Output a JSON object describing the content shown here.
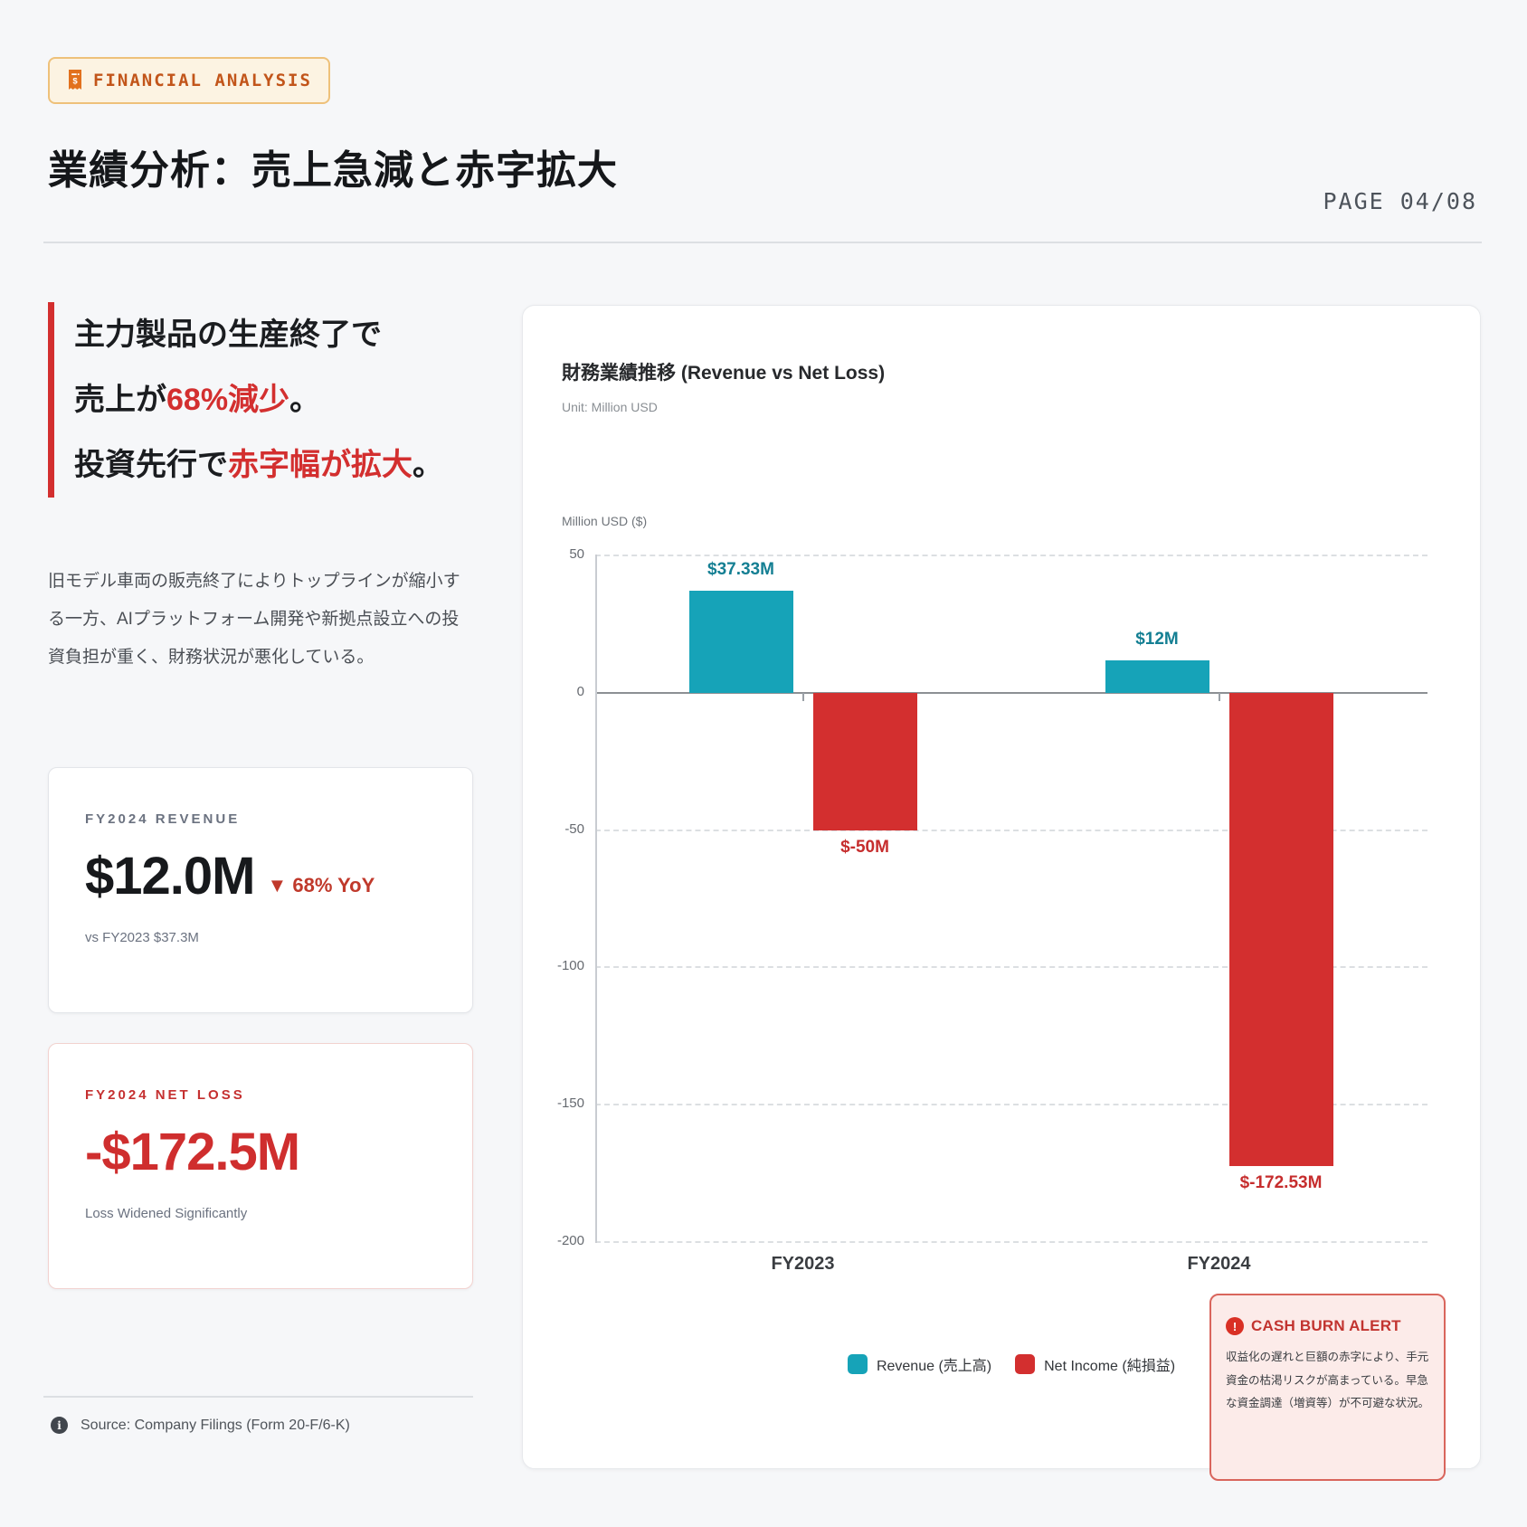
{
  "page": {
    "badge_label": "FINANCIAL ANALYSIS",
    "badge_icon": "receipt-icon",
    "title": "業績分析：売上急減と赤字拡大",
    "page_indicator": "PAGE 04/08",
    "colors": {
      "accent_red": "#d32f2f",
      "teal": "#16a3b8",
      "badge_orange": "#c2551a"
    }
  },
  "left": {
    "headline": {
      "line1": "主力製品の生産終了で",
      "line2_black": "売上が",
      "line2_red": "68%減少",
      "line2_tail": "。",
      "line3_black": "投資先行で",
      "line3_red": "赤字幅が拡大",
      "line3_tail": "。"
    },
    "paragraph": "旧モデル車両の販売終了によりトップラインが縮小する一方、AIプラットフォーム開発や新拠点設立への投資負担が重く、財務状況が悪化している。",
    "revenue_card": {
      "label": "FY2024 REVENUE",
      "value": "$12.0M",
      "delta": "▼ 68% YoY",
      "caption": "vs FY2023 $37.3M"
    },
    "netloss_card": {
      "label": "FY2024 NET LOSS",
      "value": "-$172.5M",
      "caption": "Loss Widened Significantly"
    },
    "source_icon": "info-icon",
    "source": "Source: Company Filings (Form 20-F/6-K)"
  },
  "chart_data": {
    "type": "bar",
    "title": "財務業績推移 (Revenue vs Net Loss)",
    "subtitle": "Unit: Million USD",
    "ylabel": "Million USD ($)",
    "categories": [
      "FY2023",
      "FY2024"
    ],
    "series": [
      {
        "name": "Revenue (売上高)",
        "color": "#16a3b8",
        "label_color": "#147f93",
        "values": [
          37.33,
          12
        ],
        "labels": [
          "$37.33M",
          "$12M"
        ]
      },
      {
        "name": "Net Income (純損益)",
        "color": "#d32f2f",
        "label_color": "#c62d2d",
        "values": [
          -50,
          -172.53
        ],
        "labels": [
          "$-50M",
          "$-172.53M"
        ]
      }
    ],
    "ylim": [
      -200,
      50
    ],
    "yticks": [
      50,
      0,
      -50,
      -100,
      -150,
      -200
    ],
    "grid": "dashed-horizontal",
    "legend_position": "bottom-center"
  },
  "alert": {
    "icon": "exclamation-icon",
    "title": "CASH BURN ALERT",
    "body": "収益化の遅れと巨額の赤字により、手元資金の枯渇リスクが高まっている。早急な資金調達（増資等）が不可避な状況。"
  }
}
